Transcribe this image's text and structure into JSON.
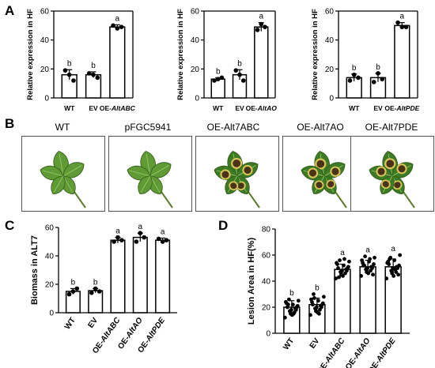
{
  "panels": {
    "a": "A",
    "b": "B",
    "c": "C",
    "d": "D"
  },
  "photo_labels": [
    "WT",
    "pFGC5941",
    "OE-Alt7ABC",
    "OE-Alt7AO",
    "OE-Alt7PDE"
  ],
  "chart_data": [
    {
      "type": "bar",
      "ylabel": "Relative expression in HF",
      "ylim": [
        0,
        60
      ],
      "yticks": [
        0,
        20,
        40,
        60
      ],
      "categories": [
        "WT",
        "EV",
        "OE-AltABC"
      ],
      "values": [
        16,
        16,
        49
      ],
      "errors": [
        3.5,
        2,
        1.5
      ],
      "points": [
        [
          19,
          16,
          12
        ],
        [
          17,
          16,
          14
        ],
        [
          50,
          48,
          49
        ]
      ],
      "letters": [
        "b",
        "b",
        "a"
      ]
    },
    {
      "type": "bar",
      "ylabel": "Relative expression in HF",
      "ylim": [
        0,
        60
      ],
      "yticks": [
        0,
        20,
        40,
        60
      ],
      "categories": [
        "WT",
        "EV",
        "OE-AltAO"
      ],
      "values": [
        13,
        16,
        49
      ],
      "errors": [
        1,
        3.5,
        3
      ],
      "points": [
        [
          12,
          13,
          14
        ],
        [
          19,
          16,
          12
        ],
        [
          47,
          51,
          49
        ]
      ],
      "letters": [
        "b",
        "b",
        "a"
      ]
    },
    {
      "type": "bar",
      "ylabel": "Relative expression in HF",
      "ylim": [
        0,
        60
      ],
      "yticks": [
        0,
        20,
        40,
        60
      ],
      "categories": [
        "WT",
        "EV",
        "OE-AltPDE"
      ],
      "values": [
        14,
        14,
        50
      ],
      "errors": [
        2.5,
        3,
        2
      ],
      "points": [
        [
          12,
          16,
          14
        ],
        [
          11,
          17,
          13
        ],
        [
          52,
          49,
          49
        ]
      ],
      "letters": [
        "b",
        "b",
        "a"
      ]
    },
    {
      "type": "bar",
      "ylabel": "Biomass in ALT7",
      "ylim": [
        0,
        60
      ],
      "yticks": [
        0,
        20,
        40,
        60
      ],
      "categories": [
        "WT",
        "EV",
        "OE-AltABC",
        "OE-AltAO",
        "OE-AltPDE"
      ],
      "values": [
        15,
        15.5,
        51,
        53,
        51
      ],
      "errors": [
        2,
        1.5,
        2,
        3,
        1.5
      ],
      "points": [
        [
          13,
          15,
          17
        ],
        [
          14,
          17,
          15
        ],
        [
          50,
          53,
          51
        ],
        [
          50,
          56,
          53
        ],
        [
          52,
          50,
          51
        ]
      ],
      "letters": [
        "b",
        "b",
        "a",
        "a",
        "a"
      ]
    },
    {
      "type": "bar",
      "ylabel": "Lesion Area in HF(%)",
      "ylim": [
        0,
        80
      ],
      "yticks": [
        0,
        20,
        40,
        60,
        80
      ],
      "categories": [
        "WT",
        "EV",
        "OE-AltABC",
        "OE-AltAO",
        "OE-AltPDE"
      ],
      "values": [
        20,
        22,
        49,
        51,
        51
      ],
      "errors": [
        5,
        5,
        4,
        5,
        6
      ],
      "points": [
        [
          12,
          15,
          18,
          20,
          22,
          25,
          17,
          19,
          23,
          14,
          21,
          26,
          16,
          24,
          18,
          20,
          22,
          15
        ],
        [
          14,
          17,
          20,
          22,
          25,
          28,
          19,
          21,
          24,
          16,
          23,
          27,
          18,
          26,
          20,
          22,
          30,
          15
        ],
        [
          42,
          45,
          48,
          50,
          52,
          55,
          47,
          49,
          53,
          44,
          51,
          56,
          46,
          54,
          48,
          50,
          43,
          57
        ],
        [
          44,
          47,
          50,
          52,
          55,
          58,
          49,
          51,
          54,
          46,
          53,
          59,
          48,
          56,
          50,
          45,
          52,
          57
        ],
        [
          42,
          46,
          50,
          53,
          56,
          60,
          48,
          51,
          55,
          44,
          52,
          58,
          47,
          54,
          50,
          45,
          57,
          49
        ]
      ],
      "letters": [
        "b",
        "b",
        "a",
        "a",
        "a"
      ]
    }
  ]
}
